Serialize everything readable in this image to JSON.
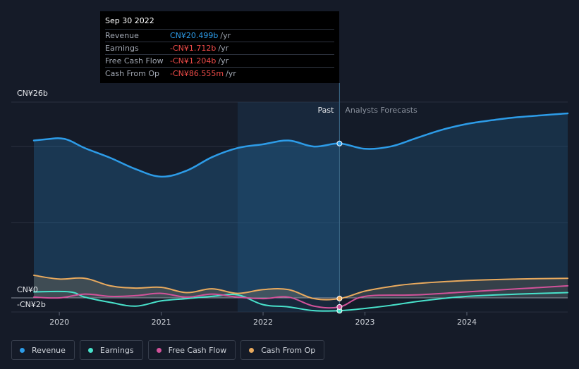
{
  "chart_data": {
    "type": "line",
    "title": "",
    "xlabel": "",
    "ylabel": "",
    "xlim": [
      2019.75,
      2024.99
    ],
    "ylim": [
      -2,
      26
    ],
    "y_axis_labels": [
      "CN¥26b",
      "CN¥0",
      "-CN¥2b"
    ],
    "x_ticks": [
      {
        "value": 2020,
        "label": "2020"
      },
      {
        "value": 2021,
        "label": "2021"
      },
      {
        "value": 2022,
        "label": "2022"
      },
      {
        "value": 2023,
        "label": "2023"
      },
      {
        "value": 2024,
        "label": "2024"
      }
    ],
    "past_label": "Past",
    "forecast_label": "Analysts Forecasts",
    "divider_x": 2022.75,
    "highlight_range": [
      2021.75,
      2022.75
    ],
    "grid": true,
    "legend_position": "bottom-left",
    "series": [
      {
        "name": "Revenue",
        "color": "#2d9ce8",
        "fill": true,
        "points": [
          [
            2019.75,
            20.9
          ],
          [
            2019.9,
            21.1
          ],
          [
            2020.0,
            21.2
          ],
          [
            2020.1,
            20.9
          ],
          [
            2020.25,
            19.9
          ],
          [
            2020.5,
            18.6
          ],
          [
            2020.75,
            17.1
          ],
          [
            2021.0,
            16.1
          ],
          [
            2021.25,
            16.9
          ],
          [
            2021.5,
            18.7
          ],
          [
            2021.75,
            19.9
          ],
          [
            2022.0,
            20.4
          ],
          [
            2022.25,
            20.9
          ],
          [
            2022.5,
            20.1
          ],
          [
            2022.75,
            20.5
          ],
          [
            2023.0,
            19.8
          ],
          [
            2023.25,
            20.1
          ],
          [
            2023.5,
            21.2
          ],
          [
            2023.75,
            22.3
          ],
          [
            2024.0,
            23.1
          ],
          [
            2024.25,
            23.6
          ],
          [
            2024.5,
            24.0
          ],
          [
            2024.99,
            24.5
          ]
        ]
      },
      {
        "name": "Earnings",
        "color": "#48e2cb",
        "fill": false,
        "points": [
          [
            2019.75,
            0.8
          ],
          [
            2020.1,
            0.8
          ],
          [
            2020.25,
            0.1
          ],
          [
            2020.5,
            -0.6
          ],
          [
            2020.75,
            -1.1
          ],
          [
            2021.0,
            -0.4
          ],
          [
            2021.25,
            -0.1
          ],
          [
            2021.5,
            0.2
          ],
          [
            2021.75,
            0.4
          ],
          [
            2022.0,
            -0.9
          ],
          [
            2022.25,
            -1.2
          ],
          [
            2022.5,
            -1.7
          ],
          [
            2022.75,
            -1.7
          ],
          [
            2023.0,
            -1.4
          ],
          [
            2023.25,
            -1.0
          ],
          [
            2023.5,
            -0.5
          ],
          [
            2023.75,
            -0.1
          ],
          [
            2024.0,
            0.2
          ],
          [
            2024.5,
            0.5
          ],
          [
            2024.99,
            0.7
          ]
        ]
      },
      {
        "name": "Free Cash Flow",
        "color": "#d2529a",
        "fill": false,
        "points": [
          [
            2019.75,
            0.1
          ],
          [
            2020.0,
            0.0
          ],
          [
            2020.25,
            0.5
          ],
          [
            2020.5,
            0.2
          ],
          [
            2020.75,
            0.3
          ],
          [
            2021.0,
            0.6
          ],
          [
            2021.25,
            0.1
          ],
          [
            2021.5,
            0.5
          ],
          [
            2021.75,
            0.1
          ],
          [
            2022.0,
            -0.1
          ],
          [
            2022.25,
            0.1
          ],
          [
            2022.5,
            -1.1
          ],
          [
            2022.75,
            -1.2
          ],
          [
            2023.0,
            0.2
          ],
          [
            2023.5,
            0.4
          ],
          [
            2024.0,
            0.8
          ],
          [
            2024.5,
            1.2
          ],
          [
            2024.99,
            1.6
          ]
        ]
      },
      {
        "name": "Cash From Op",
        "color": "#e9aa5e",
        "fill": true,
        "points": [
          [
            2019.75,
            3.0
          ],
          [
            2020.0,
            2.5
          ],
          [
            2020.25,
            2.6
          ],
          [
            2020.5,
            1.6
          ],
          [
            2020.75,
            1.3
          ],
          [
            2021.0,
            1.4
          ],
          [
            2021.25,
            0.7
          ],
          [
            2021.5,
            1.2
          ],
          [
            2021.75,
            0.6
          ],
          [
            2022.0,
            1.1
          ],
          [
            2022.25,
            1.1
          ],
          [
            2022.5,
            -0.1
          ],
          [
            2022.75,
            -0.1
          ],
          [
            2023.0,
            0.9
          ],
          [
            2023.25,
            1.5
          ],
          [
            2023.5,
            1.9
          ],
          [
            2024.0,
            2.3
          ],
          [
            2024.5,
            2.5
          ],
          [
            2024.99,
            2.6
          ]
        ]
      }
    ]
  },
  "tooltip": {
    "date": "Sep 30 2022",
    "rows": [
      {
        "label": "Revenue",
        "value": "CN¥20.499b",
        "unit": "/yr",
        "color": "#2d9ce8"
      },
      {
        "label": "Earnings",
        "value": "-CN¥1.712b",
        "unit": "/yr",
        "color": "#ef4b48"
      },
      {
        "label": "Free Cash Flow",
        "value": "-CN¥1.204b",
        "unit": "/yr",
        "color": "#ef4b48"
      },
      {
        "label": "Cash From Op",
        "value": "-CN¥86.555m",
        "unit": "/yr",
        "color": "#ef4b48"
      }
    ]
  },
  "legend": [
    {
      "label": "Revenue",
      "color": "#2d9ce8"
    },
    {
      "label": "Earnings",
      "color": "#48e2cb"
    },
    {
      "label": "Free Cash Flow",
      "color": "#d2529a"
    },
    {
      "label": "Cash From Op",
      "color": "#e9aa5e"
    }
  ]
}
